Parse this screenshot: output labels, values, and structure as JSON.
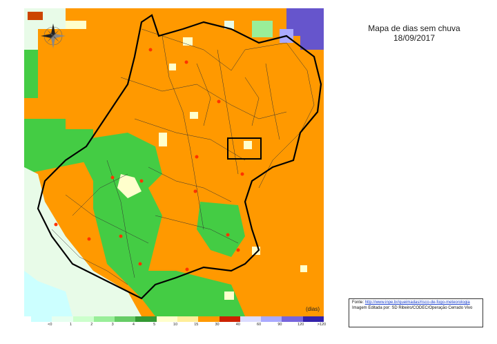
{
  "title": {
    "line1": "Mapa de dias sem chuva",
    "line2": "18/09/2017"
  },
  "legend": {
    "unit": "(dias)",
    "classes": [
      {
        "label": "<0",
        "color": "#ccffff"
      },
      {
        "label": "1",
        "color": "#e6fff0"
      },
      {
        "label": "2",
        "color": "#ccffcc"
      },
      {
        "label": "3",
        "color": "#99ee99"
      },
      {
        "label": "4",
        "color": "#66cc66"
      },
      {
        "label": "5",
        "color": "#339933"
      },
      {
        "label": "10",
        "color": "#ffffcc"
      },
      {
        "label": "15",
        "color": "#ffee99"
      },
      {
        "label": "30",
        "color": "#ff9900"
      },
      {
        "label": "40",
        "color": "#cc2200"
      },
      {
        "label": "60",
        "color": "#ddddff"
      },
      {
        "label": "90",
        "color": "#aaaaff"
      },
      {
        "label": "120",
        "color": "#7766dd"
      },
      {
        "label": ">120",
        "color": "#3322aa"
      }
    ]
  },
  "source": {
    "prefix": "Fonte: ",
    "link_text": "http://www.inpe.br/queimadas/risco-de-fogo-meteorologia",
    "credit": "Imagem Editada por: SD Ribeiro/CODEC/Operação Cerrado Vivo"
  },
  "colors": {
    "orange": "#ff9900",
    "green": "#44cc44",
    "pale_green": "#e8fbe8",
    "pale_yellow": "#ffffcc",
    "purple": "#6655cc"
  },
  "icons": [
    "compass-rose-icon",
    "fire-spot-icon"
  ]
}
